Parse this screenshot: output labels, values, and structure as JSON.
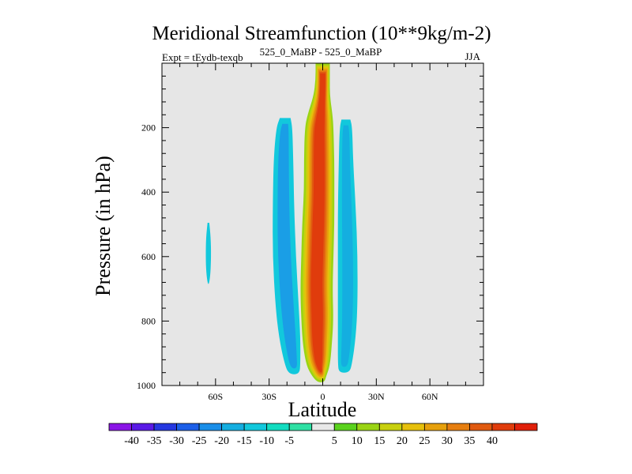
{
  "chart_data": {
    "type": "contour",
    "title": "Meridional Streamfunction (10**9kg/m-2)",
    "subtitle_left": "Expt = tEydb-texqb",
    "subtitle_center": "525_0_MaBP - 525_0_MaBP",
    "subtitle_right": "JJA",
    "xlabel": "Latitude",
    "ylabel": "Pressure (in hPa)",
    "xlim": [
      -90,
      90
    ],
    "ylim": [
      1000,
      0
    ],
    "x_ticks": [
      {
        "value": -60,
        "label": "60S"
      },
      {
        "value": -30,
        "label": "30S"
      },
      {
        "value": 0,
        "label": "0"
      },
      {
        "value": 30,
        "label": "30N"
      },
      {
        "value": 60,
        "label": "60N"
      }
    ],
    "y_ticks": [
      {
        "value": 200,
        "label": "200"
      },
      {
        "value": 400,
        "label": "400"
      },
      {
        "value": 600,
        "label": "600"
      },
      {
        "value": 800,
        "label": "800"
      },
      {
        "value": 1000,
        "label": "1000"
      }
    ],
    "background_color": "#e6e6e6",
    "levels": [
      "-40",
      "-35",
      "-30",
      "-25",
      "-20",
      "-15",
      "-10",
      "-5",
      "5",
      "10",
      "15",
      "20",
      "25",
      "30",
      "35",
      "40"
    ],
    "colors": [
      "#8a14e6",
      "#5a1ae6",
      "#2638e0",
      "#1c5fe8",
      "#1a8ee8",
      "#14aee0",
      "#12c8dc",
      "#12dcc0",
      "#2ee0a4",
      "#e8e8e8",
      "#5ad21e",
      "#9ad414",
      "#c8d00e",
      "#e6c00c",
      "#e6a00c",
      "#e67e10",
      "#e05a10",
      "#e03c0c",
      "#e0200a"
    ],
    "features": [
      {
        "name": "tropical-positive-cell",
        "sign": "positive",
        "profile": [
          [
            0,
            0,
            4
          ],
          [
            50,
            0,
            4
          ],
          [
            100,
            -0.5,
            4.5
          ],
          [
            160,
            -1.5,
            7
          ],
          [
            200,
            -2,
            8
          ],
          [
            300,
            -2,
            8.5
          ],
          [
            400,
            -2,
            8.5
          ],
          [
            500,
            -2.5,
            9
          ],
          [
            600,
            -3,
            9
          ],
          [
            700,
            -3.5,
            9
          ],
          [
            800,
            -3,
            9
          ],
          [
            880,
            -3,
            8
          ],
          [
            940,
            -2.5,
            6.5
          ],
          [
            970,
            -2,
            4
          ],
          [
            990,
            -1,
            2
          ]
        ],
        "layers": [
          {
            "color": "#9ad414",
            "s": 1.0
          },
          {
            "color": "#c8d00e",
            "s": 0.87
          },
          {
            "color": "#e6c00c",
            "s": 0.76
          },
          {
            "color": "#e6a00c",
            "s": 0.66
          },
          {
            "color": "#e67e10",
            "s": 0.56
          },
          {
            "color": "#e05a10",
            "s": 0.46
          },
          {
            "color": "#e03c0c",
            "s": 0.36
          }
        ]
      },
      {
        "name": "south-negative-cell",
        "sign": "negative",
        "profile": [
          [
            170,
            -21,
            3
          ],
          [
            200,
            -21.5,
            4.5
          ],
          [
            300,
            -22,
            5.5
          ],
          [
            450,
            -22,
            6
          ],
          [
            600,
            -21.5,
            6.5
          ],
          [
            750,
            -20,
            6.5
          ],
          [
            850,
            -18.5,
            6
          ],
          [
            930,
            -17,
            4.5
          ],
          [
            965,
            -16,
            3
          ]
        ],
        "layers": [
          {
            "color": "#12c8dc",
            "s": 1.0
          },
          {
            "color": "#1a9ee6",
            "s": 0.55
          }
        ]
      },
      {
        "name": "north-negative-cell",
        "sign": "negative",
        "profile": [
          [
            175,
            13,
            2.5
          ],
          [
            200,
            13,
            3.5
          ],
          [
            300,
            13,
            4
          ],
          [
            450,
            13.5,
            5
          ],
          [
            600,
            14,
            5.5
          ],
          [
            750,
            14,
            5.5
          ],
          [
            850,
            13.5,
            5
          ],
          [
            930,
            12.5,
            4
          ],
          [
            960,
            12,
            3
          ]
        ],
        "layers": [
          {
            "color": "#12c8dc",
            "s": 1.0
          },
          {
            "color": "#14aee0",
            "s": 0.55
          }
        ]
      },
      {
        "name": "polar-negative-sliver",
        "sign": "negative",
        "profile": [
          [
            495,
            -64,
            0.5
          ],
          [
            540,
            -64,
            1.3
          ],
          [
            600,
            -64,
            1.5
          ],
          [
            650,
            -64,
            1.2
          ],
          [
            685,
            -64,
            0.4
          ]
        ],
        "layers": [
          {
            "color": "#12c8dc",
            "s": 1.0
          }
        ]
      }
    ]
  }
}
